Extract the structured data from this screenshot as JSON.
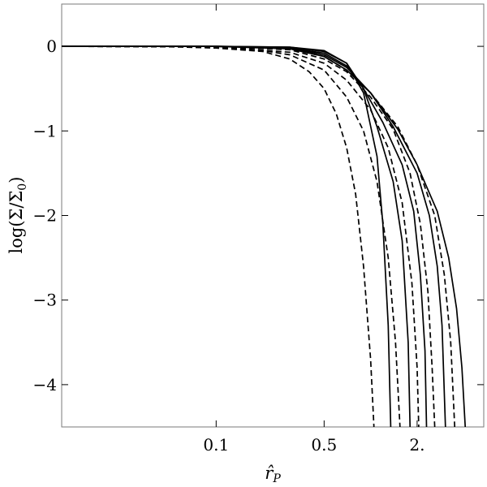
{
  "chart_data": {
    "type": "line",
    "xlabel": "r̂_P",
    "ylabel": "log(Σ/Σ_0)",
    "x_scale": "log",
    "xlim": [
      0.01,
      5.4
    ],
    "ylim": [
      -4.5,
      0.5
    ],
    "x_ticks": [
      {
        "value": 0.1,
        "label": "0.1"
      },
      {
        "value": 0.5,
        "label": "0.5"
      },
      {
        "value": 2.0,
        "label": "2."
      }
    ],
    "y_ticks": [
      {
        "value": 0,
        "label": "0"
      },
      {
        "value": -1,
        "label": "−1"
      },
      {
        "value": -2,
        "label": "−2"
      },
      {
        "value": -3,
        "label": "−3"
      },
      {
        "value": -4,
        "label": "−4"
      }
    ],
    "series": [
      {
        "style": "solid",
        "points": [
          [
            0.01,
            0
          ],
          [
            0.1,
            0
          ],
          [
            0.3,
            -0.01
          ],
          [
            0.5,
            -0.05
          ],
          [
            0.7,
            -0.2
          ],
          [
            0.9,
            -0.55
          ],
          [
            1.1,
            -1.3
          ],
          [
            1.2,
            -2.1
          ],
          [
            1.3,
            -3.3
          ],
          [
            1.35,
            -4.5
          ]
        ]
      },
      {
        "style": "solid",
        "points": [
          [
            0.01,
            0
          ],
          [
            0.1,
            0
          ],
          [
            0.3,
            -0.01
          ],
          [
            0.5,
            -0.06
          ],
          [
            0.7,
            -0.2
          ],
          [
            0.9,
            -0.5
          ],
          [
            1.1,
            -0.95
          ],
          [
            1.4,
            -1.6
          ],
          [
            1.6,
            -2.3
          ],
          [
            1.75,
            -3.5
          ],
          [
            1.8,
            -4.5
          ]
        ]
      },
      {
        "style": "solid",
        "points": [
          [
            0.01,
            0
          ],
          [
            0.1,
            0
          ],
          [
            0.3,
            -0.02
          ],
          [
            0.5,
            -0.08
          ],
          [
            0.7,
            -0.23
          ],
          [
            0.9,
            -0.5
          ],
          [
            1.2,
            -0.9
          ],
          [
            1.6,
            -1.4
          ],
          [
            1.9,
            -1.95
          ],
          [
            2.1,
            -2.7
          ],
          [
            2.25,
            -3.6
          ],
          [
            2.3,
            -4.5
          ]
        ]
      },
      {
        "style": "solid",
        "points": [
          [
            0.01,
            0
          ],
          [
            0.1,
            0
          ],
          [
            0.3,
            -0.02
          ],
          [
            0.5,
            -0.1
          ],
          [
            0.7,
            -0.25
          ],
          [
            1.0,
            -0.55
          ],
          [
            1.4,
            -0.95
          ],
          [
            2.0,
            -1.5
          ],
          [
            2.4,
            -2.0
          ],
          [
            2.7,
            -2.6
          ],
          [
            2.9,
            -3.3
          ],
          [
            3.05,
            -4.5
          ]
        ]
      },
      {
        "style": "solid",
        "points": [
          [
            0.01,
            0
          ],
          [
            0.1,
            0
          ],
          [
            0.3,
            -0.03
          ],
          [
            0.5,
            -0.12
          ],
          [
            0.7,
            -0.28
          ],
          [
            1.0,
            -0.55
          ],
          [
            1.5,
            -0.98
          ],
          [
            2.0,
            -1.4
          ],
          [
            2.7,
            -1.95
          ],
          [
            3.2,
            -2.5
          ],
          [
            3.6,
            -3.1
          ],
          [
            3.9,
            -3.8
          ],
          [
            4.1,
            -4.5
          ]
        ]
      },
      {
        "style": "dashed",
        "points": [
          [
            0.01,
            0
          ],
          [
            0.05,
            -0.005
          ],
          [
            0.1,
            -0.02
          ],
          [
            0.2,
            -0.06
          ],
          [
            0.3,
            -0.15
          ],
          [
            0.4,
            -0.3
          ],
          [
            0.5,
            -0.5
          ],
          [
            0.6,
            -0.8
          ],
          [
            0.7,
            -1.2
          ],
          [
            0.8,
            -1.75
          ],
          [
            0.9,
            -2.6
          ],
          [
            1.0,
            -3.7
          ],
          [
            1.05,
            -4.5
          ]
        ]
      },
      {
        "style": "dashed",
        "points": [
          [
            0.01,
            0
          ],
          [
            0.05,
            -0.003
          ],
          [
            0.1,
            -0.01
          ],
          [
            0.2,
            -0.05
          ],
          [
            0.3,
            -0.1
          ],
          [
            0.5,
            -0.28
          ],
          [
            0.7,
            -0.6
          ],
          [
            0.9,
            -1.0
          ],
          [
            1.1,
            -1.6
          ],
          [
            1.3,
            -2.5
          ],
          [
            1.45,
            -3.5
          ],
          [
            1.55,
            -4.5
          ]
        ]
      },
      {
        "style": "dashed",
        "points": [
          [
            0.01,
            0
          ],
          [
            0.1,
            -0.005
          ],
          [
            0.3,
            -0.07
          ],
          [
            0.5,
            -0.2
          ],
          [
            0.7,
            -0.4
          ],
          [
            1.0,
            -0.75
          ],
          [
            1.3,
            -1.2
          ],
          [
            1.6,
            -1.85
          ],
          [
            1.85,
            -2.8
          ],
          [
            2.0,
            -3.8
          ],
          [
            2.05,
            -4.5
          ]
        ]
      },
      {
        "style": "dashed",
        "points": [
          [
            0.01,
            0
          ],
          [
            0.1,
            -0.003
          ],
          [
            0.3,
            -0.04
          ],
          [
            0.5,
            -0.15
          ],
          [
            0.7,
            -0.3
          ],
          [
            1.0,
            -0.6
          ],
          [
            1.4,
            -0.98
          ],
          [
            1.8,
            -1.5
          ],
          [
            2.1,
            -2.1
          ],
          [
            2.35,
            -2.9
          ],
          [
            2.5,
            -3.8
          ],
          [
            2.6,
            -4.5
          ]
        ]
      },
      {
        "style": "dashed",
        "points": [
          [
            0.01,
            0
          ],
          [
            0.1,
            -0.002
          ],
          [
            0.3,
            -0.03
          ],
          [
            0.5,
            -0.12
          ],
          [
            0.7,
            -0.28
          ],
          [
            1.0,
            -0.55
          ],
          [
            1.5,
            -0.95
          ],
          [
            2.0,
            -1.4
          ],
          [
            2.6,
            -2.0
          ],
          [
            3.0,
            -2.7
          ],
          [
            3.3,
            -3.5
          ],
          [
            3.5,
            -4.5
          ]
        ]
      }
    ]
  }
}
